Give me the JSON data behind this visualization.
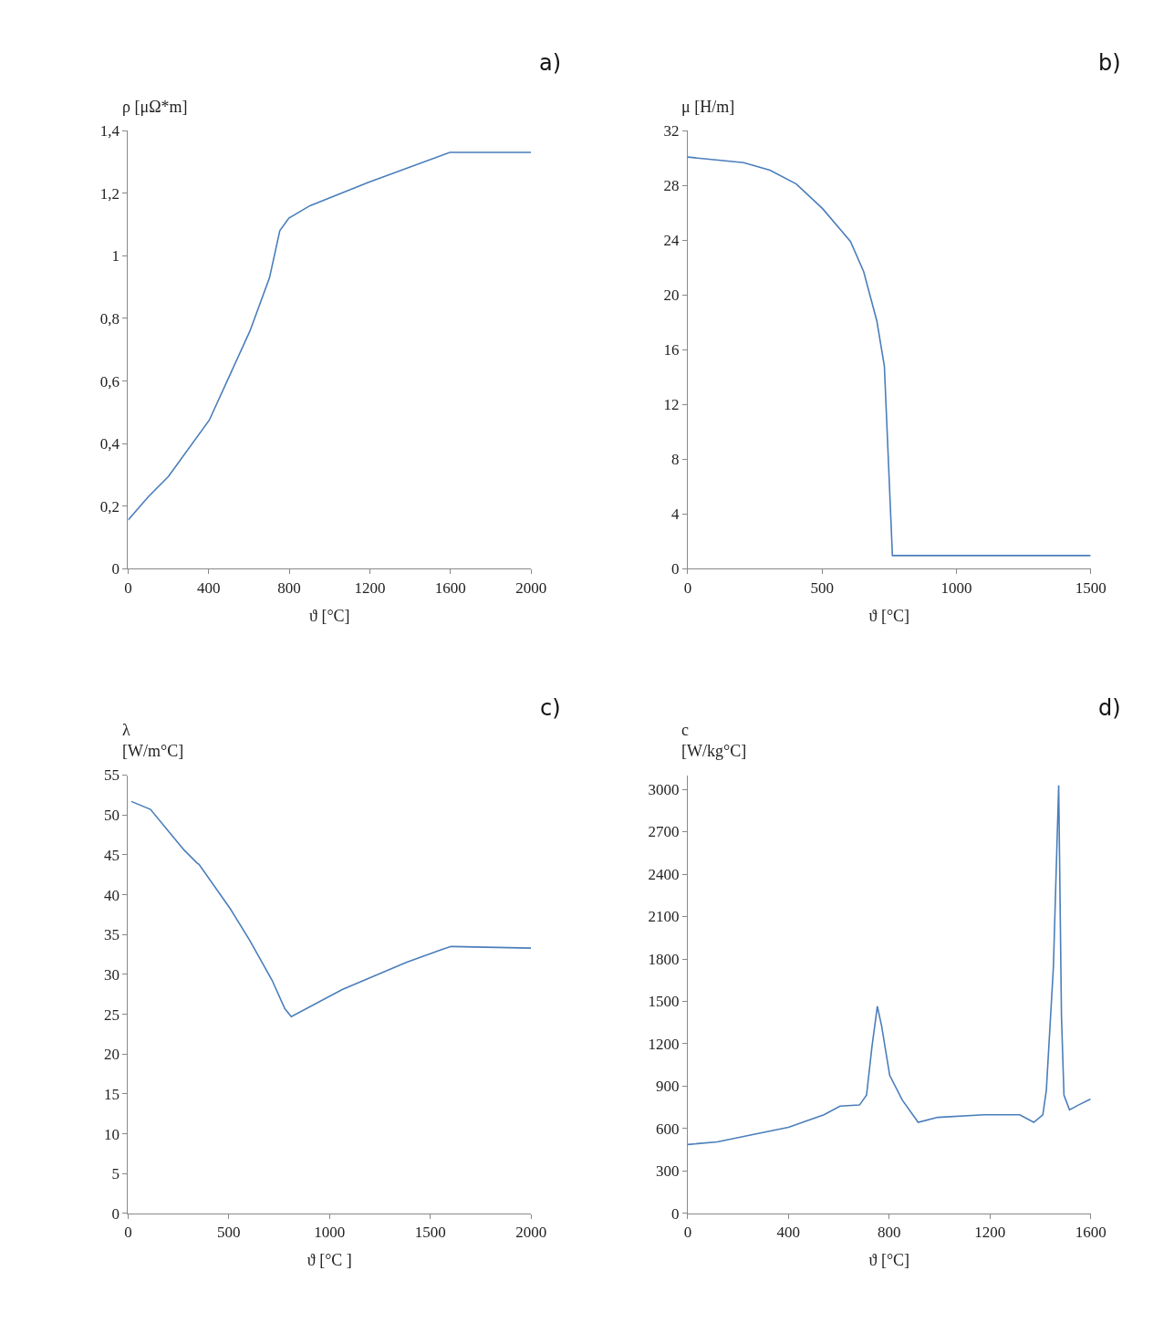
{
  "chart_data": [
    {
      "type": "line",
      "xlabel": "ϑ [°C]",
      "ylabel": "ρ [μΩ*m]",
      "annotations": [
        "a)"
      ],
      "color": "#4a7ebb",
      "x": [
        0,
        100,
        200,
        403,
        605,
        702,
        753,
        798,
        903,
        1194,
        1597,
        2000
      ],
      "values": [
        0.156,
        0.23,
        0.295,
        0.475,
        0.76,
        0.93,
        1.08,
        1.12,
        1.16,
        1.235,
        1.33,
        1.33
      ],
      "xlim": [
        0,
        2000
      ],
      "xticks": [
        0,
        400,
        800,
        1200,
        1600,
        2000
      ],
      "ylim": [
        0,
        1.4
      ],
      "yticks": [
        0,
        {
          "value": 0.2,
          "label": "0,2"
        },
        {
          "value": 0.4,
          "label": "0,4"
        },
        {
          "value": 0.6,
          "label": "0,6"
        },
        {
          "value": 0.8,
          "label": "0,8"
        },
        1,
        {
          "value": 1.2,
          "label": "1,2"
        },
        {
          "value": 1.4,
          "label": "1,4"
        }
      ]
    },
    {
      "type": "line",
      "xlabel": "ϑ [°C]",
      "ylabel": "μ [H/m]",
      "annotations": [
        "b)"
      ],
      "color": "#4a7ebb",
      "x": [
        0,
        208,
        306,
        404,
        502,
        606,
        655,
        704,
        732,
        762,
        1500
      ],
      "values": [
        30.06,
        29.66,
        29.1,
        28.1,
        26.3,
        23.9,
        21.7,
        18.1,
        14.8,
        0.97,
        0.97
      ],
      "xlim": [
        0,
        1500
      ],
      "xticks": [
        0,
        500,
        1000,
        1500
      ],
      "ylim": [
        0,
        32
      ],
      "yticks": [
        0,
        4,
        8,
        12,
        16,
        20,
        24,
        28,
        32
      ]
    },
    {
      "type": "line",
      "xlabel": "ϑ [°C ]",
      "ylabel": "λ\n[W/m°C]",
      "annotations": [
        "c)"
      ],
      "color": "#4a7ebb",
      "x": [
        16,
        111,
        206,
        278,
        341,
        352,
        508,
        603,
        714,
        778,
        810,
        1063,
        1381,
        1556,
        1603,
        2000
      ],
      "values": [
        51.7,
        50.7,
        47.8,
        45.6,
        44.0,
        43.8,
        38.2,
        34.3,
        29.3,
        25.7,
        24.7,
        28.1,
        31.5,
        33.1,
        33.5,
        33.3
      ],
      "xlim": [
        0,
        2000
      ],
      "xticks": [
        0,
        500,
        1000,
        1500,
        2000
      ],
      "ylim": [
        0,
        55
      ],
      "yticks": [
        0,
        5,
        10,
        15,
        20,
        25,
        30,
        35,
        40,
        45,
        50,
        55
      ]
    },
    {
      "type": "line",
      "xlabel": "ϑ [°C]",
      "ylabel": "c\n[W/kg°C]",
      "annotations": [
        "d)"
      ],
      "color": "#4a7ebb",
      "x": [
        0,
        117,
        258,
        400,
        541,
        605,
        682,
        710,
        732,
        753,
        770,
        802,
        852,
        915,
        993,
        1177,
        1318,
        1374,
        1410,
        1424,
        1452,
        1473,
        1484,
        1494,
        1516,
        1551,
        1600
      ],
      "values": [
        488,
        506,
        558,
        610,
        698,
        760,
        767,
        837,
        1186,
        1465,
        1325,
        977,
        802,
        645,
        680,
        698,
        698,
        645,
        698,
        872,
        1744,
        3028,
        1395,
        837,
        733,
        767,
        809
      ],
      "xlim": [
        0,
        1600
      ],
      "xticks": [
        0,
        400,
        800,
        1200,
        1600
      ],
      "ylim": [
        0,
        3100
      ],
      "yticks": [
        0,
        300,
        600,
        900,
        1200,
        1500,
        1800,
        2100,
        2400,
        2700,
        3000
      ]
    }
  ]
}
